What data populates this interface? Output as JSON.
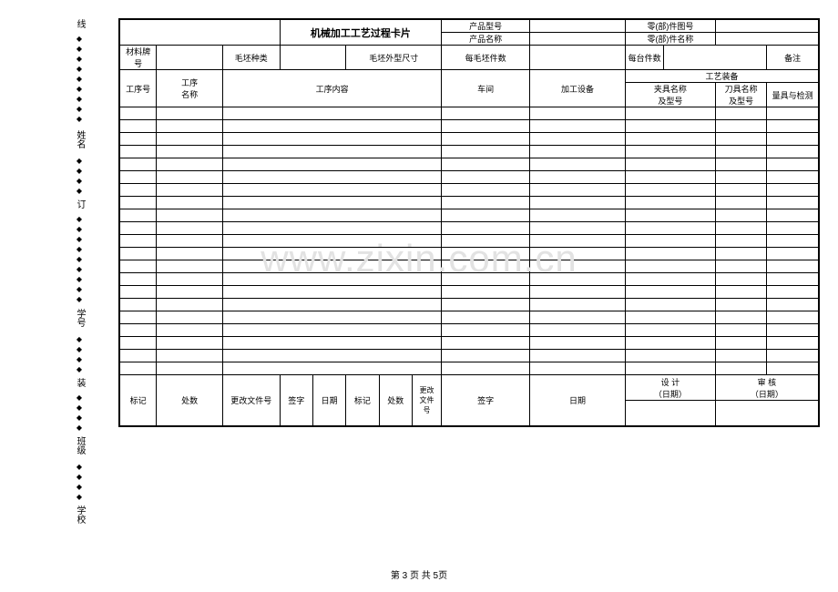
{
  "binding": {
    "labels": [
      "线",
      "姓名",
      "订",
      "学号",
      "装",
      "班级",
      "学校"
    ],
    "diamond": "◆"
  },
  "title": "机械加工工艺过程卡片",
  "header": {
    "product_model_label": "产品型号",
    "part_drawing_no_label": "零(部)件图号",
    "product_name_label": "产品名称",
    "part_name_label": "零(部)件名称"
  },
  "row_material": {
    "material_grade_label": "材料牌号",
    "blank_type_label": "毛坯种类",
    "blank_dim_label": "毛坯外型尺寸",
    "per_blank_count_label": "每毛坯件数",
    "per_unit_count_label": "每台件数",
    "remark_label": "备注"
  },
  "process_header": {
    "proc_no_label": "工序号",
    "proc_name_label": "工序\n名称",
    "proc_content_label": "工序内容",
    "workshop_label": "车间",
    "equipment_label": "加工设备",
    "tooling_label": "工艺装备",
    "fixture_label": "夹具名称\n及型号",
    "cutter_label": "刀具名称\n及型号",
    "gauge_label": "量具与检测"
  },
  "signoff": {
    "design_label": "设 计",
    "design_date_label": "（日期）",
    "review_label": "审 核",
    "review_date_label": "（日期）"
  },
  "revision": {
    "mark_label": "标记",
    "count_label": "处数",
    "change_doc_label": "更改文件号",
    "sign_label": "签字",
    "date_label": "日期",
    "change_doc_short_label": "更改\n文件\n号"
  },
  "footer": "第 3 页 共 5页",
  "watermark": "www.zixin.com.cn",
  "empty_rows": 21,
  "colors": {
    "border": "#000000",
    "bg": "#ffffff",
    "watermark": "#e2e2e2"
  }
}
